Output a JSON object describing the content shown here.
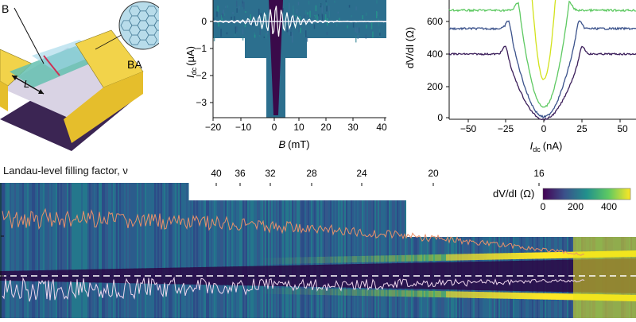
{
  "panel_a": {
    "label_B": "B",
    "label_L": "L",
    "label_BA": "BA"
  },
  "panel_b": {
    "ylabel_main": "I",
    "ylabel_sub": "dc",
    "ylabel_unit": "(μA)",
    "xlabel_main": "B",
    "xlabel_unit": "(mT)",
    "yticks": [
      "0",
      "−1",
      "−2",
      "−3"
    ],
    "xticks": [
      "−20",
      "−10",
      "0",
      "10",
      "20",
      "30",
      "40"
    ]
  },
  "panel_c": {
    "ylabel": "dV/dI (Ω)",
    "yticks": [
      "600",
      "400",
      "200",
      "0"
    ],
    "xticks": [
      "−50",
      "−25",
      "0",
      "25",
      "50"
    ],
    "xlabel_main": "I",
    "xlabel_sub": "dc",
    "xlabel_unit": "(nA)"
  },
  "panel_d": {
    "title": "Landau-level filling factor, ν",
    "filling_factors": [
      "40",
      "36",
      "32",
      "28",
      "24",
      "20",
      "16"
    ],
    "colorbar_label": "dV/dI (Ω)",
    "colorbar_ticks": [
      "0",
      "200",
      "400"
    ]
  },
  "colors": {
    "viridis_dark": "#440154",
    "viridis_mid": "#21918c",
    "viridis_light": "#fde725",
    "curve_purple": "#3b1e5a",
    "curve_blue": "#3b528b",
    "curve_green": "#5ec962",
    "curve_yellow": "#d2e21b",
    "device_gold": "#f2d34a"
  }
}
